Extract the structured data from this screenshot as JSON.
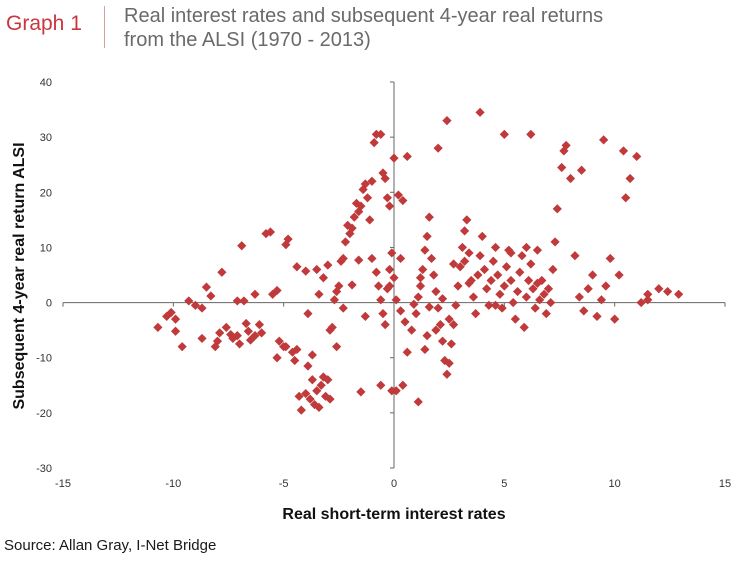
{
  "header": {
    "graph_label": "Graph 1",
    "title_line1": "Real interest rates and subsequent 4-year real returns",
    "title_line2": "from the ALSI (1970 - 2013)"
  },
  "source": "Source: Allan Gray, I-Net Bridge",
  "colors": {
    "accent": "#c8373e",
    "point": "#c0393b",
    "title": "#6a6a6a"
  },
  "chart_data": {
    "type": "scatter",
    "title": "Real interest rates and subsequent 4-year real returns from the ALSI (1970 - 2013)",
    "xlabel": "Real short-term interest rates",
    "ylabel": "Subsequent 4-year real return ALSI",
    "xlim": [
      -15,
      15
    ],
    "ylim": [
      -30,
      40
    ],
    "xticks": [
      -15,
      -10,
      -5,
      0,
      5,
      10,
      15
    ],
    "yticks": [
      -30,
      -20,
      -10,
      0,
      10,
      20,
      30,
      40
    ],
    "grid": false,
    "legend": "none",
    "points": [
      [
        -10.7,
        -4.5
      ],
      [
        -10.3,
        -2.5
      ],
      [
        -10.1,
        -1.8
      ],
      [
        -9.9,
        -5.2
      ],
      [
        -9.6,
        -8
      ],
      [
        -9.3,
        0.3
      ],
      [
        -9,
        -0.5
      ],
      [
        -8.7,
        -1
      ],
      [
        -8.5,
        2.8
      ],
      [
        -8.3,
        1.2
      ],
      [
        -8.1,
        -8
      ],
      [
        -8,
        -7
      ],
      [
        -7.9,
        -5.5
      ],
      [
        -7.8,
        5.5
      ],
      [
        -7.6,
        -4.5
      ],
      [
        -7.4,
        -5.8
      ],
      [
        -7.3,
        -6.5
      ],
      [
        -7.1,
        -6
      ],
      [
        -7,
        -7.5
      ],
      [
        -6.9,
        10.3
      ],
      [
        -6.8,
        0.3
      ],
      [
        -6.7,
        -3.8
      ],
      [
        -6.6,
        -5.2
      ],
      [
        -6.5,
        -6.8
      ],
      [
        -6.3,
        -6
      ],
      [
        -6.1,
        -4
      ],
      [
        -6,
        -5.5
      ],
      [
        -5.8,
        12.5
      ],
      [
        -5.6,
        12.8
      ],
      [
        -5.5,
        1.5
      ],
      [
        -5.3,
        2.2
      ],
      [
        -5.2,
        -7
      ],
      [
        -5,
        -8
      ],
      [
        -4.9,
        10.5
      ],
      [
        -4.8,
        11.5
      ],
      [
        -4.6,
        -9
      ],
      [
        -4.5,
        -10.5
      ],
      [
        -4.4,
        -8.5
      ],
      [
        -4.3,
        -17
      ],
      [
        -4.2,
        -19.5
      ],
      [
        -4,
        -16.5
      ],
      [
        -3.9,
        -11.5
      ],
      [
        -3.8,
        -17.5
      ],
      [
        -3.7,
        -14
      ],
      [
        -3.6,
        -18.5
      ],
      [
        -3.5,
        -16
      ],
      [
        -3.4,
        -19
      ],
      [
        -3.3,
        -15
      ],
      [
        -3.2,
        -13.5
      ],
      [
        -3.1,
        -17
      ],
      [
        -3,
        -14
      ],
      [
        -2.9,
        -17.5
      ],
      [
        -3.5,
        6
      ],
      [
        -3.2,
        4.5
      ],
      [
        -3,
        6.8
      ],
      [
        -2.9,
        -5
      ],
      [
        -2.8,
        -4.5
      ],
      [
        -2.7,
        0.5
      ],
      [
        -2.6,
        2
      ],
      [
        -2.5,
        3
      ],
      [
        -2.4,
        7.5
      ],
      [
        -2.3,
        8
      ],
      [
        -2.2,
        11
      ],
      [
        -2.1,
        14
      ],
      [
        -2,
        12.5
      ],
      [
        -1.9,
        13.5
      ],
      [
        -1.8,
        15.5
      ],
      [
        -1.7,
        18
      ],
      [
        -1.6,
        16.5
      ],
      [
        -1.5,
        17.5
      ],
      [
        -1.4,
        20.5
      ],
      [
        -1.3,
        21.5
      ],
      [
        -1.2,
        19
      ],
      [
        -1.1,
        15
      ],
      [
        -1,
        22
      ],
      [
        -0.9,
        29
      ],
      [
        -0.8,
        30.5
      ],
      [
        -0.6,
        30.5
      ],
      [
        -0.5,
        23.5
      ],
      [
        -0.4,
        22.5
      ],
      [
        -0.3,
        19
      ],
      [
        -0.2,
        17.5
      ],
      [
        0,
        26.2
      ],
      [
        0.2,
        19.5
      ],
      [
        0.4,
        18.5
      ],
      [
        0.6,
        26.5
      ],
      [
        -1,
        8
      ],
      [
        -0.8,
        5.5
      ],
      [
        -0.7,
        3
      ],
      [
        -0.6,
        0.5
      ],
      [
        -0.5,
        -2
      ],
      [
        -0.4,
        -4
      ],
      [
        -0.3,
        2.5
      ],
      [
        -0.2,
        6
      ],
      [
        -0.1,
        9
      ],
      [
        0,
        4.5
      ],
      [
        0.1,
        0.5
      ],
      [
        0.3,
        -1.5
      ],
      [
        0.5,
        -3.5
      ],
      [
        0.6,
        -9
      ],
      [
        0.8,
        -5
      ],
      [
        1,
        -2
      ],
      [
        1.1,
        1
      ],
      [
        1.2,
        3
      ],
      [
        1.3,
        6
      ],
      [
        1.4,
        9.5
      ],
      [
        1.5,
        12
      ],
      [
        1.6,
        15.5
      ],
      [
        1.7,
        8
      ],
      [
        1.8,
        5
      ],
      [
        1.9,
        2
      ],
      [
        2,
        -1
      ],
      [
        2.1,
        -4
      ],
      [
        2.2,
        -7
      ],
      [
        2.3,
        -10.5
      ],
      [
        2.4,
        -13
      ],
      [
        2.5,
        -11
      ],
      [
        2.6,
        -7.5
      ],
      [
        2.7,
        -4
      ],
      [
        2.8,
        -0.5
      ],
      [
        2.9,
        3
      ],
      [
        3,
        6.5
      ],
      [
        3.1,
        10
      ],
      [
        3.2,
        13
      ],
      [
        3.3,
        15
      ],
      [
        3.4,
        9
      ],
      [
        3.5,
        4
      ],
      [
        3.6,
        1
      ],
      [
        3.7,
        -2
      ],
      [
        3.8,
        5
      ],
      [
        3.9,
        8.5
      ],
      [
        4,
        12
      ],
      [
        4.1,
        6
      ],
      [
        4.2,
        2.5
      ],
      [
        4.3,
        -0.5
      ],
      [
        4.4,
        4
      ],
      [
        4.5,
        7.5
      ],
      [
        4.6,
        10
      ],
      [
        4.7,
        5
      ],
      [
        4.8,
        1.5
      ],
      [
        4.9,
        -1
      ],
      [
        5,
        3
      ],
      [
        5.1,
        6.5
      ],
      [
        5.2,
        9.5
      ],
      [
        5.3,
        4
      ],
      [
        5.4,
        0
      ],
      [
        5.5,
        -3
      ],
      [
        5.6,
        2
      ],
      [
        5.7,
        5.5
      ],
      [
        5.8,
        8.5
      ],
      [
        5.9,
        -4.5
      ],
      [
        6,
        1
      ],
      [
        6.1,
        4
      ],
      [
        6.2,
        7
      ],
      [
        6.3,
        2.5
      ],
      [
        6.4,
        -1
      ],
      [
        6.5,
        3.5
      ],
      [
        6.6,
        0.5
      ],
      [
        6.7,
        4
      ],
      [
        6.8,
        1.5
      ],
      [
        6.9,
        -2
      ],
      [
        7,
        2.5
      ],
      [
        7.1,
        0
      ],
      [
        7.2,
        6
      ],
      [
        7.3,
        11
      ],
      [
        7.4,
        17
      ],
      [
        7.6,
        24.5
      ],
      [
        7.8,
        28.5
      ],
      [
        8,
        22.5
      ],
      [
        8.2,
        8.5
      ],
      [
        8.4,
        1
      ],
      [
        8.6,
        -1.5
      ],
      [
        8.8,
        2.5
      ],
      [
        9,
        5
      ],
      [
        9.2,
        -2.5
      ],
      [
        9.4,
        0.5
      ],
      [
        9.6,
        3
      ],
      [
        9.8,
        8
      ],
      [
        10,
        -3
      ],
      [
        10.2,
        5
      ],
      [
        10.5,
        19
      ],
      [
        10.7,
        22.5
      ],
      [
        11,
        26.5
      ],
      [
        11.2,
        0
      ],
      [
        11.5,
        0.5
      ],
      [
        12,
        2.5
      ],
      [
        12.4,
        2
      ],
      [
        12.9,
        1.5
      ],
      [
        2,
        28
      ],
      [
        2.4,
        33
      ],
      [
        3.9,
        34.5
      ],
      [
        5,
        30.5
      ],
      [
        6.2,
        30.5
      ],
      [
        7.7,
        27.5
      ],
      [
        8.5,
        24
      ],
      [
        9.5,
        29.5
      ],
      [
        10.4,
        27.5
      ],
      [
        11.5,
        1.5
      ],
      [
        0.4,
        -15
      ],
      [
        0.1,
        -16
      ],
      [
        -0.1,
        -16
      ],
      [
        -0.6,
        -15
      ],
      [
        1.1,
        -18
      ],
      [
        -1.5,
        -16.2
      ],
      [
        -2.6,
        -8
      ],
      [
        -3.7,
        -9.5
      ],
      [
        -4.9,
        -8
      ],
      [
        -5.3,
        -10
      ],
      [
        1.9,
        -5
      ],
      [
        1.4,
        -8.5
      ],
      [
        1.5,
        -6
      ],
      [
        2.5,
        -3
      ],
      [
        0.9,
        -0.3
      ],
      [
        1.2,
        4.5
      ],
      [
        1.6,
        -0.8
      ],
      [
        2.2,
        0.7
      ],
      [
        2.7,
        7
      ],
      [
        3.2,
        7.5
      ],
      [
        3.4,
        3.5
      ],
      [
        4.6,
        -0.5
      ],
      [
        5.3,
        9
      ],
      [
        6,
        10
      ],
      [
        6.5,
        9.5
      ],
      [
        -1.9,
        3.2
      ],
      [
        -2.3,
        -1
      ],
      [
        -1.6,
        7.7
      ],
      [
        -1.3,
        -2.5
      ],
      [
        -0.2,
        3
      ],
      [
        0.3,
        8
      ],
      [
        -4,
        5.7
      ],
      [
        -4.4,
        6.5
      ],
      [
        -3.9,
        -2
      ],
      [
        -3.4,
        1.5
      ],
      [
        -6.3,
        1.5
      ],
      [
        -7.1,
        0.3
      ],
      [
        -8.7,
        -6.5
      ],
      [
        -9.9,
        -3
      ]
    ]
  }
}
